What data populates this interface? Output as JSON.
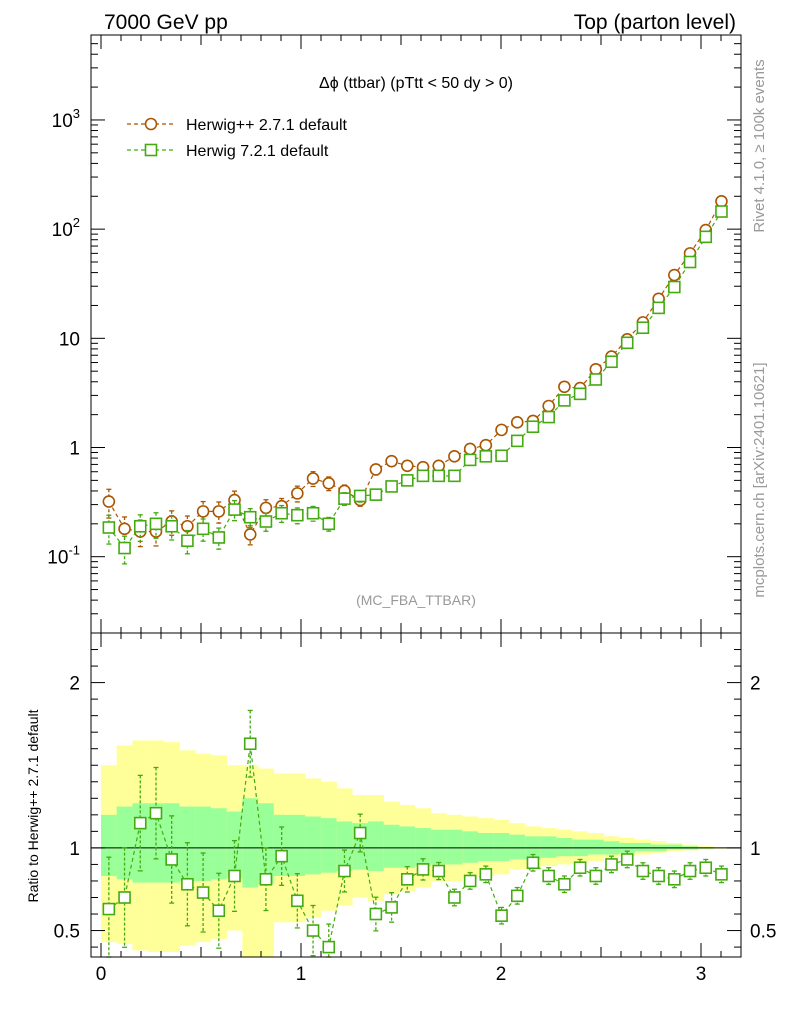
{
  "header": {
    "left": "7000 GeV pp",
    "right": "Top (parton level)"
  },
  "side_labels": {
    "rivet": "Rivet 4.1.0, ≥ 100k events",
    "mcplots": "mcplots.cern.ch [arXiv:2401.10621]"
  },
  "watermark": "(MC_FBA_TTBAR)",
  "chart_data": [
    {
      "type": "scatter",
      "title": "Δϕ (ttbar) (pTtt < 50 dy > 0)",
      "yscale": "log",
      "xlim": [
        -0.05,
        3.2
      ],
      "ylim": [
        0.02,
        6000
      ],
      "ytick_labels": [
        "10^-1",
        "1",
        "10",
        "10^2",
        "10^3"
      ],
      "legend_position": "top-left",
      "series": [
        {
          "name": "Herwig++ 2.7.1 default",
          "marker": "circle",
          "color": "#aa5500",
          "x": [
            0.0393,
            0.1178,
            0.1963,
            0.2749,
            0.3534,
            0.432,
            0.5105,
            0.589,
            0.6676,
            0.7461,
            0.8247,
            0.9032,
            0.9817,
            1.0603,
            1.1388,
            1.2174,
            1.2959,
            1.3744,
            1.453,
            1.5315,
            1.6101,
            1.6886,
            1.7671,
            1.8457,
            1.9242,
            2.0028,
            2.0813,
            2.1598,
            2.2384,
            2.3169,
            2.3955,
            2.474,
            2.5525,
            2.6311,
            2.7096,
            2.7882,
            2.8667,
            2.9452,
            3.0238,
            3.1023
          ],
          "y": [
            0.32,
            0.18,
            0.17,
            0.17,
            0.21,
            0.19,
            0.26,
            0.26,
            0.33,
            0.16,
            0.28,
            0.29,
            0.38,
            0.52,
            0.47,
            0.4,
            0.33,
            0.63,
            0.75,
            0.68,
            0.66,
            0.68,
            0.83,
            0.97,
            1.05,
            1.45,
            1.7,
            1.75,
            2.4,
            3.6,
            3.5,
            5.2,
            6.8,
            9.8,
            14.0,
            23.0,
            38.0,
            60.0,
            98.0,
            180.0
          ]
        },
        {
          "name": "Herwig 7.2.1 default",
          "marker": "square",
          "color": "#44aa11",
          "x": [
            0.0393,
            0.1178,
            0.1963,
            0.2749,
            0.3534,
            0.432,
            0.5105,
            0.589,
            0.6676,
            0.7461,
            0.8247,
            0.9032,
            0.9817,
            1.0603,
            1.1388,
            1.2174,
            1.2959,
            1.3744,
            1.453,
            1.5315,
            1.6101,
            1.6886,
            1.7671,
            1.8457,
            1.9242,
            2.0028,
            2.0813,
            2.1598,
            2.2384,
            2.3169,
            2.3955,
            2.474,
            2.5525,
            2.6311,
            2.7096,
            2.7882,
            2.8667,
            2.9452,
            3.0238,
            3.1023
          ],
          "y": [
            0.185,
            0.12,
            0.19,
            0.2,
            0.19,
            0.14,
            0.18,
            0.15,
            0.27,
            0.23,
            0.21,
            0.25,
            0.24,
            0.25,
            0.2,
            0.34,
            0.36,
            0.37,
            0.44,
            0.5,
            0.55,
            0.55,
            0.55,
            0.77,
            0.83,
            0.84,
            1.15,
            1.55,
            1.9,
            2.7,
            3.1,
            4.2,
            6.1,
            9.1,
            12.5,
            19.0,
            29.5,
            50.0,
            85.0,
            145.0
          ]
        }
      ]
    },
    {
      "type": "scatter",
      "ylabel": "Ratio to Herwig++ 2.7.1 default",
      "xlim": [
        -0.05,
        3.2
      ],
      "ylim": [
        0.34,
        2.3
      ],
      "x_tick_labels": [
        "0",
        "1",
        "2",
        "3"
      ],
      "y_tick_labels": [
        "0.5",
        "1",
        "2"
      ],
      "reference_line": 1,
      "uncertainty_bands": {
        "outer_color": "#ffff99",
        "inner_color": "#99ff99",
        "x_edges": [
          0.0,
          0.0785,
          0.1571,
          0.2356,
          0.3142,
          0.3927,
          0.4712,
          0.5498,
          0.6283,
          0.7069,
          0.7854,
          0.8639,
          0.9425,
          1.021,
          1.0996,
          1.1781,
          1.2566,
          1.3352,
          1.4137,
          1.4923,
          1.5708,
          1.6493,
          1.7279,
          1.8064,
          1.885,
          1.9635,
          2.042,
          2.1206,
          2.1991,
          2.2777,
          2.3562,
          2.4347,
          2.5133,
          2.5918,
          2.6704,
          2.7489,
          2.8274,
          2.906,
          2.9845,
          3.0631,
          3.1416
        ],
        "outer_low": [
          0.43,
          0.42,
          0.38,
          0.37,
          0.37,
          0.41,
          0.43,
          0.45,
          0.5,
          0.33,
          0.33,
          0.55,
          0.55,
          0.58,
          0.62,
          0.65,
          0.7,
          0.68,
          0.72,
          0.74,
          0.76,
          0.8,
          0.8,
          0.82,
          0.83,
          0.84,
          0.87,
          0.87,
          0.89,
          0.9,
          0.91,
          0.92,
          0.94,
          0.95,
          0.96,
          0.97,
          0.98,
          0.985,
          0.99,
          0.995
        ],
        "outer_high": [
          1.5,
          1.62,
          1.65,
          1.65,
          1.64,
          1.59,
          1.57,
          1.56,
          1.5,
          1.5,
          1.48,
          1.45,
          1.45,
          1.42,
          1.4,
          1.36,
          1.32,
          1.32,
          1.28,
          1.26,
          1.24,
          1.21,
          1.2,
          1.19,
          1.18,
          1.17,
          1.15,
          1.13,
          1.12,
          1.11,
          1.1,
          1.09,
          1.07,
          1.06,
          1.05,
          1.04,
          1.03,
          1.02,
          1.01,
          1.005
        ],
        "inner_low": [
          0.83,
          0.81,
          0.79,
          0.79,
          0.79,
          0.8,
          0.8,
          0.81,
          0.82,
          0.76,
          0.78,
          0.83,
          0.83,
          0.84,
          0.85,
          0.86,
          0.87,
          0.86,
          0.88,
          0.88,
          0.89,
          0.9,
          0.9,
          0.91,
          0.92,
          0.92,
          0.93,
          0.93,
          0.94,
          0.95,
          0.95,
          0.96,
          0.96,
          0.97,
          0.98,
          0.98,
          0.99,
          0.99,
          0.995,
          0.998
        ],
        "inner_high": [
          1.2,
          1.25,
          1.27,
          1.27,
          1.27,
          1.25,
          1.25,
          1.24,
          1.22,
          1.3,
          1.27,
          1.2,
          1.2,
          1.19,
          1.18,
          1.16,
          1.15,
          1.16,
          1.14,
          1.13,
          1.12,
          1.11,
          1.11,
          1.1,
          1.09,
          1.09,
          1.08,
          1.07,
          1.07,
          1.06,
          1.05,
          1.05,
          1.04,
          1.03,
          1.03,
          1.02,
          1.02,
          1.01,
          1.005,
          1.002
        ]
      },
      "series": [
        {
          "name": "Herwig 7.2.1 default / Herwig++ 2.7.1 default",
          "marker": "square",
          "color": "#44aa11",
          "x": [
            0.0393,
            0.1178,
            0.1963,
            0.2749,
            0.3534,
            0.432,
            0.5105,
            0.589,
            0.6676,
            0.7461,
            0.8247,
            0.9032,
            0.9817,
            1.0603,
            1.1388,
            1.2174,
            1.2959,
            1.3744,
            1.453,
            1.5315,
            1.6101,
            1.6886,
            1.7671,
            1.8457,
            1.9242,
            2.0028,
            2.0813,
            2.1598,
            2.2384,
            2.3169,
            2.3955,
            2.474,
            2.5525,
            2.6311,
            2.7096,
            2.7882,
            2.8667,
            2.9452,
            3.0238,
            3.1023
          ],
          "y": [
            0.63,
            0.7,
            1.15,
            1.21,
            0.93,
            0.78,
            0.73,
            0.62,
            0.83,
            1.63,
            0.81,
            0.95,
            0.68,
            0.5,
            0.4,
            0.86,
            1.09,
            0.6,
            0.64,
            0.81,
            0.87,
            0.86,
            0.7,
            0.8,
            0.84,
            0.59,
            0.71,
            0.91,
            0.83,
            0.78,
            0.88,
            0.83,
            0.9,
            0.93,
            0.86,
            0.83,
            0.81,
            0.86,
            0.88,
            0.84
          ]
        }
      ]
    }
  ]
}
